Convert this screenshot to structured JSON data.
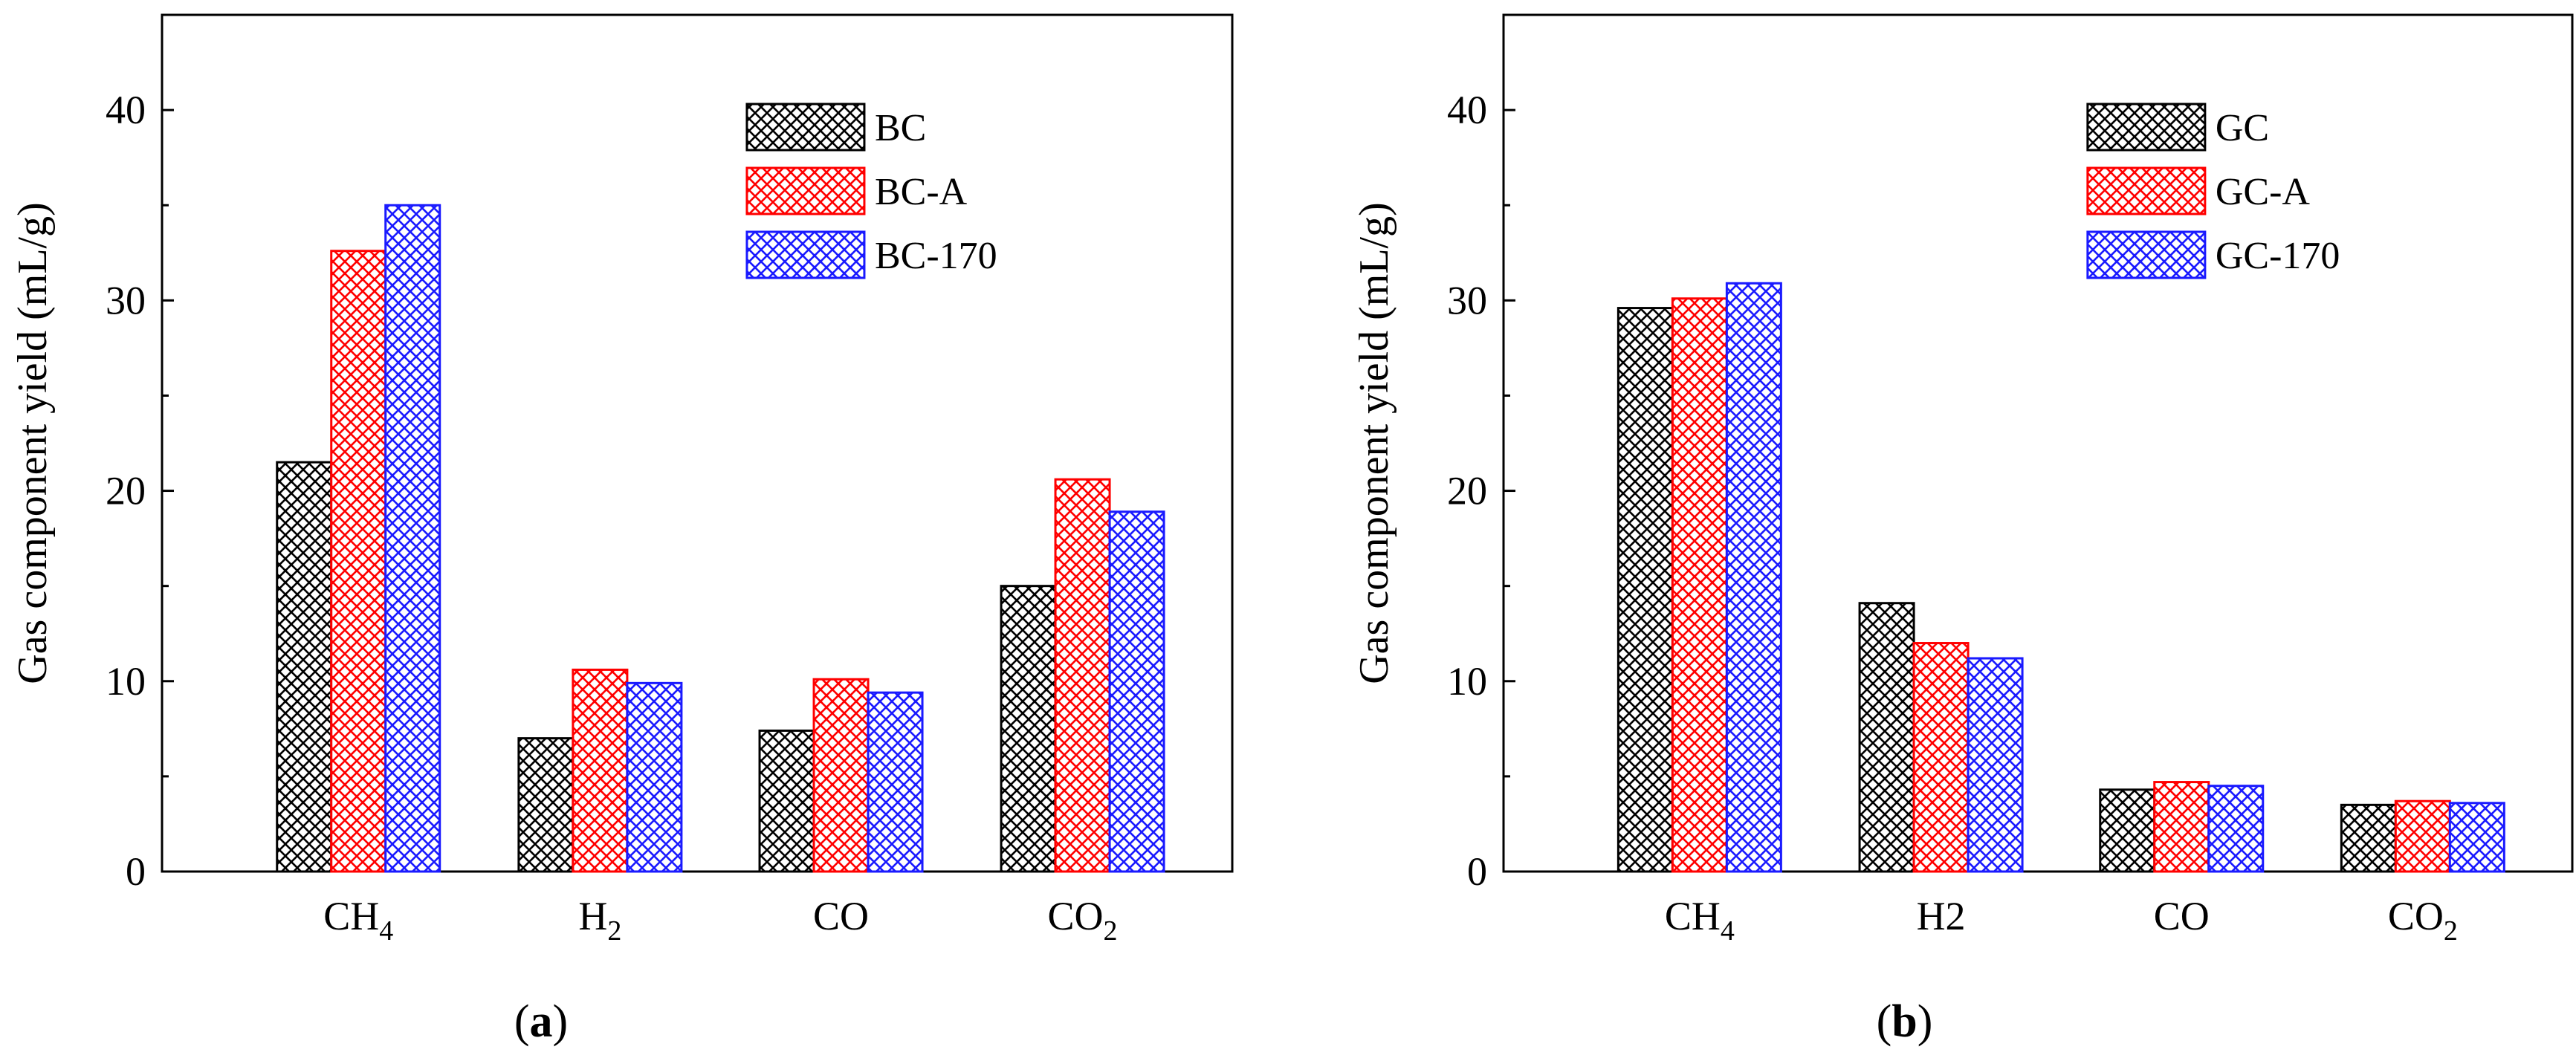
{
  "colors": {
    "black": "#000000",
    "red": "#ff0000",
    "blue": "#1a1aff"
  },
  "chart_data": [
    {
      "type": "bar",
      "panel_label": "a",
      "title": "",
      "xlabel": "",
      "ylabel": "Gas component yield (mL/g)",
      "ylim": [
        0,
        45
      ],
      "yticks": [
        "0",
        "10",
        "20",
        "30",
        "40"
      ],
      "grid": false,
      "legend_position": "top-right",
      "categories": [
        {
          "main": "CH",
          "sub": "4"
        },
        {
          "main": "H",
          "sub": "2"
        },
        {
          "main": "CO",
          "sub": ""
        },
        {
          "main": "CO",
          "sub": "2"
        }
      ],
      "series": [
        {
          "name": "BC",
          "color": "#000000",
          "values": [
            21.5,
            7.0,
            7.4,
            15.0
          ]
        },
        {
          "name": "BC-A",
          "color": "#ff0000",
          "values": [
            32.6,
            10.6,
            10.1,
            20.6
          ]
        },
        {
          "name": "BC-170",
          "color": "#1a1aff",
          "values": [
            35.0,
            9.9,
            9.4,
            18.9
          ]
        }
      ]
    },
    {
      "type": "bar",
      "panel_label": "b",
      "title": "",
      "xlabel": "",
      "ylabel": "Gas component yield (mL/g)",
      "ylim": [
        0,
        45
      ],
      "yticks": [
        "0",
        "10",
        "20",
        "30",
        "40"
      ],
      "grid": false,
      "legend_position": "top-right",
      "categories": [
        {
          "main": "CH",
          "sub": "4"
        },
        {
          "main": "H2",
          "sub": ""
        },
        {
          "main": "CO",
          "sub": ""
        },
        {
          "main": "CO",
          "sub": "2"
        }
      ],
      "series": [
        {
          "name": "GC",
          "color": "#000000",
          "values": [
            29.6,
            14.1,
            4.3,
            3.5
          ]
        },
        {
          "name": "GC-A",
          "color": "#ff0000",
          "values": [
            30.1,
            12.0,
            4.7,
            3.7
          ]
        },
        {
          "name": "GC-170",
          "color": "#1a1aff",
          "values": [
            30.9,
            11.2,
            4.5,
            3.6
          ]
        }
      ]
    }
  ]
}
